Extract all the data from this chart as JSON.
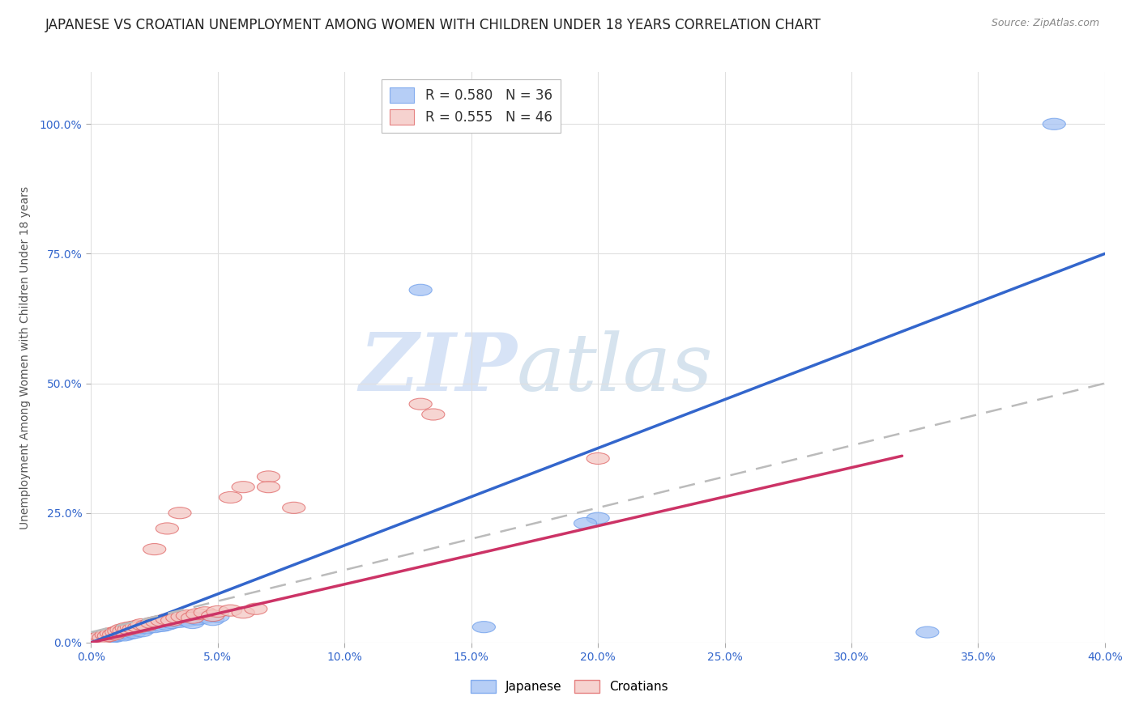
{
  "title": "JAPANESE VS CROATIAN UNEMPLOYMENT AMONG WOMEN WITH CHILDREN UNDER 18 YEARS CORRELATION CHART",
  "source": "Source: ZipAtlas.com",
  "ylabel": "Unemployment Among Women with Children Under 18 years",
  "xlim": [
    0.0,
    0.4
  ],
  "ylim": [
    0.0,
    1.1
  ],
  "xticks": [
    0.0,
    0.05,
    0.1,
    0.15,
    0.2,
    0.25,
    0.3,
    0.35,
    0.4
  ],
  "xticklabels": [
    "0.0%",
    "5.0%",
    "10.0%",
    "15.0%",
    "20.0%",
    "25.0%",
    "30.0%",
    "35.0%",
    "40.0%"
  ],
  "yticks": [
    0.0,
    0.25,
    0.5,
    0.75,
    1.0
  ],
  "yticklabels": [
    "0.0%",
    "25.0%",
    "50.0%",
    "75.0%",
    "100.0%"
  ],
  "watermark_zip": "ZIP",
  "watermark_atlas": "atlas",
  "legend_japanese": "R = 0.580   N = 36",
  "legend_croatian": "R = 0.555   N = 46",
  "blue_color": "#a4c2f4",
  "pink_color": "#f4c7c3",
  "blue_edge_color": "#6d9eeb",
  "pink_edge_color": "#e06666",
  "blue_line_color": "#3366cc",
  "pink_line_color": "#cc3366",
  "gray_dash_color": "#bbbbbb",
  "background_color": "#ffffff",
  "grid_color": "#e0e0e0",
  "title_fontsize": 12,
  "axis_label_fontsize": 10,
  "tick_fontsize": 10,
  "tick_color": "#3366cc",
  "japanese_points": [
    [
      0.002,
      0.005
    ],
    [
      0.003,
      0.008
    ],
    [
      0.004,
      0.01
    ],
    [
      0.005,
      0.007
    ],
    [
      0.006,
      0.012
    ],
    [
      0.007,
      0.009
    ],
    [
      0.008,
      0.015
    ],
    [
      0.009,
      0.011
    ],
    [
      0.01,
      0.013
    ],
    [
      0.011,
      0.016
    ],
    [
      0.012,
      0.018
    ],
    [
      0.013,
      0.014
    ],
    [
      0.014,
      0.02
    ],
    [
      0.015,
      0.017
    ],
    [
      0.016,
      0.022
    ],
    [
      0.017,
      0.019
    ],
    [
      0.018,
      0.025
    ],
    [
      0.02,
      0.022
    ],
    [
      0.022,
      0.028
    ],
    [
      0.025,
      0.03
    ],
    [
      0.028,
      0.032
    ],
    [
      0.03,
      0.035
    ],
    [
      0.032,
      0.038
    ],
    [
      0.035,
      0.04
    ],
    [
      0.038,
      0.042
    ],
    [
      0.04,
      0.038
    ],
    [
      0.042,
      0.045
    ],
    [
      0.045,
      0.048
    ],
    [
      0.048,
      0.044
    ],
    [
      0.05,
      0.05
    ],
    [
      0.13,
      0.68
    ],
    [
      0.2,
      0.24
    ],
    [
      0.195,
      0.23
    ],
    [
      0.33,
      0.02
    ],
    [
      0.155,
      0.03
    ],
    [
      0.38,
      1.0
    ]
  ],
  "croatian_points": [
    [
      0.002,
      0.008
    ],
    [
      0.004,
      0.012
    ],
    [
      0.005,
      0.01
    ],
    [
      0.006,
      0.015
    ],
    [
      0.007,
      0.013
    ],
    [
      0.008,
      0.018
    ],
    [
      0.009,
      0.016
    ],
    [
      0.01,
      0.02
    ],
    [
      0.011,
      0.022
    ],
    [
      0.012,
      0.025
    ],
    [
      0.013,
      0.023
    ],
    [
      0.014,
      0.028
    ],
    [
      0.015,
      0.026
    ],
    [
      0.016,
      0.03
    ],
    [
      0.017,
      0.028
    ],
    [
      0.018,
      0.032
    ],
    [
      0.019,
      0.03
    ],
    [
      0.02,
      0.035
    ],
    [
      0.022,
      0.033
    ],
    [
      0.024,
      0.038
    ],
    [
      0.026,
      0.04
    ],
    [
      0.028,
      0.042
    ],
    [
      0.03,
      0.045
    ],
    [
      0.032,
      0.043
    ],
    [
      0.034,
      0.048
    ],
    [
      0.036,
      0.05
    ],
    [
      0.038,
      0.052
    ],
    [
      0.04,
      0.048
    ],
    [
      0.042,
      0.055
    ],
    [
      0.045,
      0.058
    ],
    [
      0.048,
      0.052
    ],
    [
      0.05,
      0.06
    ],
    [
      0.055,
      0.062
    ],
    [
      0.06,
      0.058
    ],
    [
      0.065,
      0.065
    ],
    [
      0.025,
      0.18
    ],
    [
      0.03,
      0.22
    ],
    [
      0.035,
      0.25
    ],
    [
      0.055,
      0.28
    ],
    [
      0.06,
      0.3
    ],
    [
      0.13,
      0.46
    ],
    [
      0.135,
      0.44
    ],
    [
      0.2,
      0.355
    ],
    [
      0.07,
      0.32
    ],
    [
      0.07,
      0.3
    ],
    [
      0.08,
      0.26
    ]
  ],
  "japanese_line": [
    [
      0.0,
      0.0
    ],
    [
      0.4,
      0.75
    ]
  ],
  "pink_solid_line": [
    [
      0.0,
      0.0
    ],
    [
      0.32,
      0.36
    ]
  ],
  "gray_dash_line": [
    [
      0.0,
      0.02
    ],
    [
      0.4,
      0.5
    ]
  ]
}
